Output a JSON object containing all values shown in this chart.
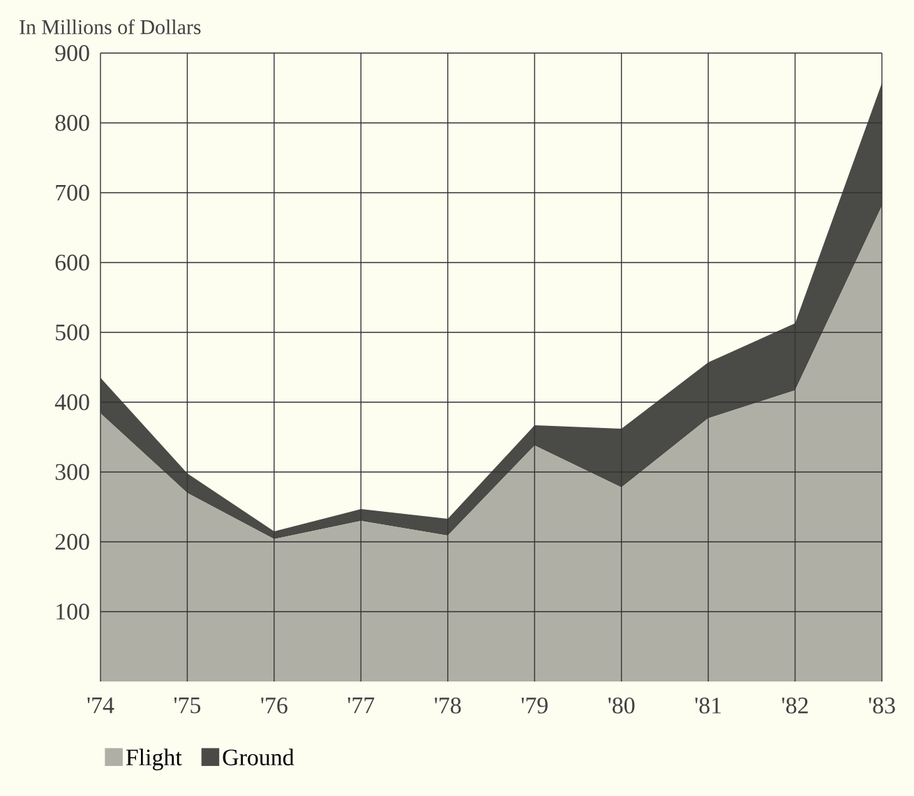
{
  "chart_data": {
    "type": "area",
    "stacked": true,
    "ylabel": "In Millions of Dollars",
    "categories": [
      "'74",
      "'75",
      "'76",
      "'77",
      "'78",
      "'79",
      "'80",
      "'81",
      "'82",
      "'83"
    ],
    "series": [
      {
        "name": "Flight",
        "color": "#b0afa6",
        "values": [
          384,
          270,
          204,
          230,
          209,
          338,
          278,
          377,
          417,
          681
        ]
      },
      {
        "name": "Ground",
        "color": "#4a4b46",
        "values": [
          51,
          28,
          11,
          17,
          24,
          29,
          84,
          80,
          96,
          176
        ]
      }
    ],
    "ylim": [
      0,
      900
    ],
    "yticks": [
      100,
      200,
      300,
      400,
      500,
      600,
      700,
      800,
      900
    ],
    "grid": true,
    "legend": "bottom left"
  }
}
